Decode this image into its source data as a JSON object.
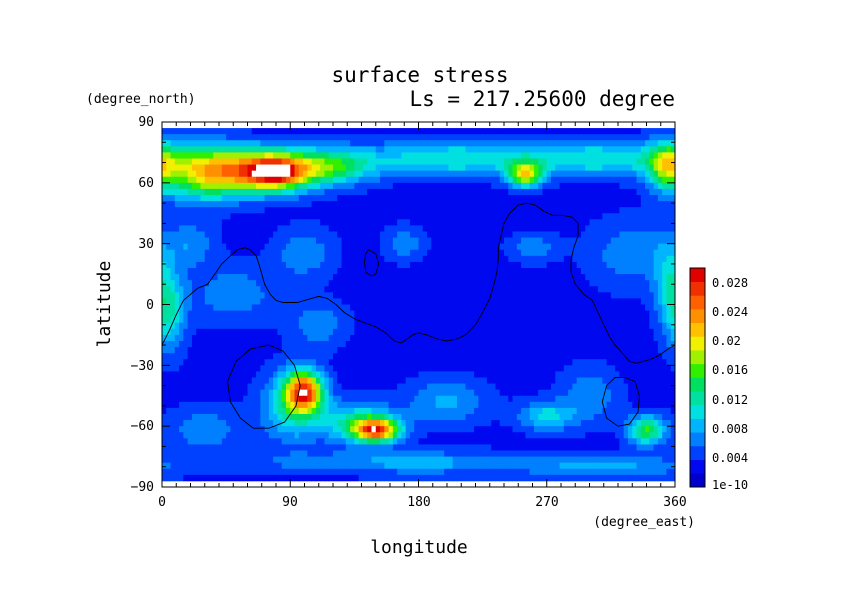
{
  "chart_data": {
    "type": "heatmap",
    "title": "surface stress",
    "subtitle": "Ls = 217.25600 degree",
    "xlabel": "longitude",
    "ylabel": "latitude",
    "xunit": "(degree_east)",
    "yunit": "(degree_north)",
    "xlim": [
      0,
      360
    ],
    "ylim": [
      -90,
      90
    ],
    "xticks": [
      "0",
      "90",
      "180",
      "270",
      "360"
    ],
    "yticks": [
      "90",
      "60",
      "30",
      "0",
      "−30",
      "−60",
      "−90"
    ],
    "data_lat_range": [
      -87,
      87
    ],
    "colorbar": {
      "labels": [
        "0.028",
        "0.024",
        "0.02",
        "0.016",
        "0.012",
        "0.008",
        "0.004",
        "1e-10"
      ],
      "range": [
        0,
        0.03
      ],
      "colors": [
        "#0000cc",
        "#0008f0",
        "#0040ff",
        "#0080ff",
        "#00b4ff",
        "#00e0e0",
        "#00e0a0",
        "#00e060",
        "#30f000",
        "#a0f000",
        "#f0f000",
        "#ffc000",
        "#ff9000",
        "#ff6000",
        "#f03000",
        "#e00000"
      ]
    },
    "saturated_color": "#ffffff",
    "background_level": 0.003,
    "features": [
      {
        "lon": 30,
        "lat": 65,
        "sx": 20,
        "sy": 9,
        "value": 0.016
      },
      {
        "lon": 75,
        "lat": 66,
        "sx": 22,
        "sy": 7,
        "value": 0.024
      },
      {
        "lon": 80,
        "lat": 65,
        "sx": 10,
        "sy": 4,
        "value": 0.008
      },
      {
        "lon": 120,
        "lat": 68,
        "sx": 20,
        "sy": 6,
        "value": 0.01
      },
      {
        "lon": 200,
        "lat": 72,
        "sx": 45,
        "sy": 6,
        "value": 0.008
      },
      {
        "lon": 255,
        "lat": 64,
        "sx": 8,
        "sy": 4,
        "value": 0.016
      },
      {
        "lon": 310,
        "lat": 72,
        "sx": 45,
        "sy": 6,
        "value": 0.008
      },
      {
        "lon": 355,
        "lat": 68,
        "sx": 10,
        "sy": 8,
        "value": 0.012
      },
      {
        "lon": 5,
        "lat": -3,
        "sx": 8,
        "sy": 14,
        "value": 0.008
      },
      {
        "lon": 50,
        "lat": 5,
        "sx": 22,
        "sy": 10,
        "value": 0.004
      },
      {
        "lon": 100,
        "lat": 25,
        "sx": 15,
        "sy": 9,
        "value": 0.004
      },
      {
        "lon": 20,
        "lat": 30,
        "sx": 12,
        "sy": 8,
        "value": 0.004
      },
      {
        "lon": 110,
        "lat": -10,
        "sx": 14,
        "sy": 8,
        "value": 0.004
      },
      {
        "lon": 100,
        "lat": -43,
        "sx": 9,
        "sy": 7,
        "value": 0.022
      },
      {
        "lon": 90,
        "lat": -50,
        "sx": 14,
        "sy": 12,
        "value": 0.008
      },
      {
        "lon": 150,
        "lat": -62,
        "sx": 11,
        "sy": 4,
        "value": 0.022
      },
      {
        "lon": 135,
        "lat": -58,
        "sx": 20,
        "sy": 7,
        "value": 0.008
      },
      {
        "lon": 30,
        "lat": -62,
        "sx": 18,
        "sy": 8,
        "value": 0.004
      },
      {
        "lon": 200,
        "lat": -48,
        "sx": 20,
        "sy": 8,
        "value": 0.005
      },
      {
        "lon": 270,
        "lat": -55,
        "sx": 14,
        "sy": 5,
        "value": 0.007
      },
      {
        "lon": 340,
        "lat": -62,
        "sx": 9,
        "sy": 5,
        "value": 0.012
      },
      {
        "lon": 300,
        "lat": -45,
        "sx": 15,
        "sy": 10,
        "value": 0.004
      },
      {
        "lon": 180,
        "lat": -78,
        "sx": 80,
        "sy": 4,
        "value": 0.005
      },
      {
        "lon": 320,
        "lat": -80,
        "sx": 40,
        "sy": 4,
        "value": 0.004
      },
      {
        "lon": 330,
        "lat": 25,
        "sx": 22,
        "sy": 12,
        "value": 0.004
      },
      {
        "lon": 355,
        "lat": 10,
        "sx": 7,
        "sy": 15,
        "value": 0.005
      },
      {
        "lon": 170,
        "lat": 30,
        "sx": 10,
        "sy": 6,
        "value": 0.004
      },
      {
        "lon": 260,
        "lat": 28,
        "sx": 12,
        "sy": 5,
        "value": 0.004
      }
    ],
    "contours": [
      [
        [
          0,
          -20
        ],
        [
          5,
          -13
        ],
        [
          10,
          -5
        ],
        [
          15,
          2
        ],
        [
          20,
          5
        ],
        [
          25,
          8
        ],
        [
          32,
          10
        ],
        [
          38,
          16
        ],
        [
          42,
          20
        ],
        [
          48,
          24
        ],
        [
          53,
          27
        ],
        [
          58,
          28
        ],
        [
          62,
          27
        ],
        [
          66,
          24
        ],
        [
          68,
          20
        ],
        [
          70,
          15
        ],
        [
          72,
          10
        ],
        [
          76,
          5
        ],
        [
          80,
          2
        ],
        [
          85,
          1
        ],
        [
          90,
          1
        ],
        [
          95,
          1
        ],
        [
          100,
          2
        ],
        [
          105,
          3
        ],
        [
          110,
          4
        ],
        [
          116,
          3
        ],
        [
          122,
          0
        ],
        [
          128,
          -4
        ],
        [
          135,
          -7
        ],
        [
          142,
          -9
        ],
        [
          150,
          -11
        ],
        [
          157,
          -14
        ],
        [
          163,
          -18
        ],
        [
          168,
          -19
        ],
        [
          172,
          -17
        ],
        [
          176,
          -15
        ],
        [
          180,
          -14
        ],
        [
          186,
          -15
        ],
        [
          193,
          -17
        ],
        [
          200,
          -18
        ],
        [
          207,
          -17
        ],
        [
          213,
          -15
        ],
        [
          220,
          -10
        ],
        [
          225,
          -4
        ],
        [
          230,
          3
        ],
        [
          233,
          10
        ],
        [
          235,
          16
        ],
        [
          236,
          22
        ],
        [
          236,
          28
        ],
        [
          238,
          34
        ],
        [
          240,
          40
        ],
        [
          244,
          45
        ],
        [
          250,
          49
        ],
        [
          256,
          50
        ],
        [
          262,
          49
        ],
        [
          268,
          46
        ],
        [
          274,
          44
        ],
        [
          281,
          44
        ],
        [
          288,
          43
        ],
        [
          292,
          40
        ],
        [
          292,
          34
        ],
        [
          289,
          28
        ],
        [
          287,
          22
        ],
        [
          287,
          16
        ],
        [
          290,
          10
        ],
        [
          296,
          5
        ],
        [
          302,
          2
        ],
        [
          306,
          -4
        ],
        [
          310,
          -10
        ],
        [
          314,
          -16
        ],
        [
          318,
          -20
        ],
        [
          323,
          -24
        ],
        [
          328,
          -28
        ],
        [
          333,
          -29
        ],
        [
          338,
          -28
        ],
        [
          343,
          -27
        ],
        [
          349,
          -25
        ],
        [
          355,
          -22
        ],
        [
          360,
          -20
        ]
      ],
      [
        [
          145,
          27
        ],
        [
          150,
          25
        ],
        [
          152,
          20
        ],
        [
          150,
          15
        ],
        [
          147,
          14
        ],
        [
          143,
          16
        ],
        [
          142,
          21
        ],
        [
          143,
          25
        ],
        [
          145,
          27
        ]
      ],
      [
        [
          75,
          -20
        ],
        [
          85,
          -23
        ],
        [
          93,
          -30
        ],
        [
          97,
          -40
        ],
        [
          94,
          -50
        ],
        [
          86,
          -58
        ],
        [
          75,
          -61
        ],
        [
          64,
          -61
        ],
        [
          55,
          -56
        ],
        [
          48,
          -48
        ],
        [
          46,
          -38
        ],
        [
          52,
          -28
        ],
        [
          62,
          -22
        ],
        [
          75,
          -20
        ]
      ],
      [
        [
          325,
          -36
        ],
        [
          332,
          -38
        ],
        [
          335,
          -45
        ],
        [
          334,
          -53
        ],
        [
          328,
          -59
        ],
        [
          320,
          -60
        ],
        [
          312,
          -56
        ],
        [
          309,
          -48
        ],
        [
          312,
          -40
        ],
        [
          318,
          -36
        ],
        [
          325,
          -36
        ]
      ]
    ]
  }
}
